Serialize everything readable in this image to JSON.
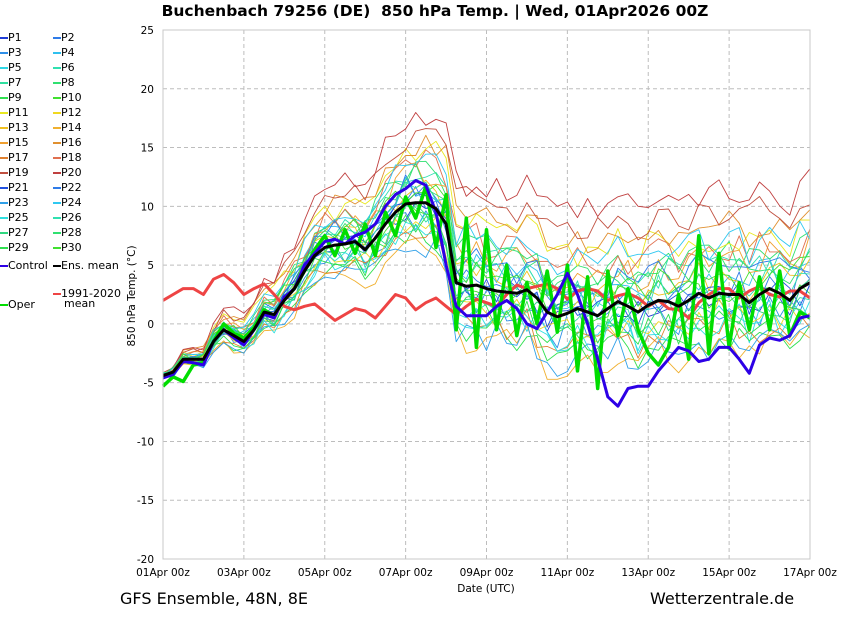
{
  "chart_data": {
    "type": "line",
    "title": "Buchenbach 79256 (DE)  850 hPa Temp. | Wed, 01Apr2026 00Z",
    "xlabel": "Date (UTC)",
    "ylabel": "850 hPa Temp. (°C)",
    "ylim": [
      -20,
      25
    ],
    "yticks": [
      -20,
      -15,
      -10,
      -5,
      0,
      5,
      10,
      15,
      20,
      25
    ],
    "x_step_hours": 6,
    "x_points": 65,
    "xticks": [
      "01Apr 00z",
      "03Apr 00z",
      "05Apr 00z",
      "07Apr 00z",
      "09Apr 00z",
      "11Apr 00z",
      "13Apr 00z",
      "15Apr 00z",
      "17Apr 00z"
    ],
    "grid": true,
    "legend_position": "left-outside",
    "main_series": {
      "ens_mean": {
        "name": "Ens. mean",
        "color": "#000000",
        "values": [
          -4.4,
          -4.1,
          -3.0,
          -3.0,
          -3.0,
          -1.5,
          -0.5,
          -1.0,
          -1.5,
          -0.5,
          1.0,
          0.8,
          2.0,
          3.0,
          4.5,
          5.8,
          6.5,
          6.7,
          6.8,
          7.0,
          6.3,
          7.3,
          8.5,
          9.5,
          10.2,
          10.3,
          10.3,
          9.8,
          8.5,
          3.5,
          3.2,
          3.3,
          3.0,
          2.8,
          2.7,
          2.6,
          2.9,
          2.2,
          1.0,
          0.6,
          0.9,
          1.3,
          1.0,
          0.7,
          1.3,
          1.9,
          1.5,
          1.0,
          1.6,
          2.0,
          1.9,
          1.5,
          2.0,
          2.6,
          2.2,
          2.6,
          2.5,
          2.5,
          1.8,
          2.5,
          3.0,
          2.6,
          2.0,
          3.0,
          3.5
        ]
      },
      "control": {
        "name": "Control",
        "color": "#2d00e6",
        "values": [
          -4.6,
          -4.3,
          -3.2,
          -3.3,
          -3.5,
          -1.5,
          -0.5,
          -1.2,
          -1.8,
          -0.5,
          0.8,
          0.5,
          2.3,
          3.0,
          5.0,
          6.0,
          7.0,
          7.2,
          6.8,
          7.5,
          7.8,
          8.5,
          10.0,
          11.0,
          11.5,
          12.2,
          11.8,
          9.5,
          5.0,
          1.5,
          0.7,
          0.7,
          0.7,
          1.5,
          2.0,
          1.3,
          0.0,
          -0.4,
          1.0,
          2.5,
          4.3,
          2.5,
          0.0,
          -3.0,
          -6.2,
          -7.0,
          -5.5,
          -5.3,
          -5.3,
          -4.0,
          -3.0,
          -2.0,
          -2.3,
          -3.2,
          -3.0,
          -2.0,
          -2.0,
          -3.0,
          -4.2,
          -1.8,
          -1.2,
          -1.4,
          -1.0,
          0.5,
          0.7
        ]
      },
      "oper": {
        "name": "Oper",
        "color": "#00dd00",
        "values": [
          -5.3,
          -4.5,
          -4.9,
          -3.5,
          -3.3,
          -1.5,
          0.0,
          -0.8,
          -1.2,
          -0.3,
          1.2,
          0.7,
          2.2,
          3.0,
          4.5,
          6.3,
          7.5,
          5.8,
          8.0,
          6.0,
          8.5,
          5.8,
          9.5,
          7.5,
          10.8,
          9.0,
          11.7,
          6.5,
          11.0,
          -0.5,
          9.0,
          -2.0,
          8.0,
          -0.5,
          5.0,
          -1.0,
          3.5,
          0.0,
          4.5,
          -0.7,
          5.0,
          -4.0,
          4.0,
          -5.5,
          4.5,
          -1.0,
          3.0,
          -0.5,
          -2.5,
          -3.5,
          -2.0,
          2.5,
          -3.0,
          7.5,
          -2.5,
          6.0,
          -2.0,
          3.5,
          -0.5,
          4.0,
          -0.5,
          4.5,
          -1.0,
          1.0,
          0.5
        ]
      },
      "climatology": {
        "name": "1991-2020 mean",
        "color": "#ee4444",
        "values": [
          2.0,
          2.5,
          3.0,
          3.0,
          2.5,
          3.8,
          4.2,
          3.5,
          2.5,
          3.0,
          3.4,
          2.5,
          1.5,
          1.2,
          1.5,
          1.7,
          1.0,
          0.3,
          0.8,
          1.3,
          1.1,
          0.5,
          1.5,
          2.5,
          2.2,
          1.2,
          1.8,
          2.2,
          1.5,
          0.8,
          1.5,
          2.1,
          1.8,
          1.5,
          2.5,
          3.3,
          3.0,
          3.2,
          3.4,
          3.0,
          2.1,
          2.8,
          3.0,
          2.8,
          2.0,
          2.4,
          2.6,
          2.2,
          1.5,
          2.0,
          1.3,
          1.2,
          0.5,
          1.8,
          2.5,
          3.0,
          3.0,
          2.2,
          2.8,
          3.2,
          2.5,
          2.3,
          2.8,
          2.8,
          2.2
        ]
      }
    },
    "members": [
      {
        "name": "P1",
        "color": "#1f3cd6"
      },
      {
        "name": "P2",
        "color": "#2f7be8"
      },
      {
        "name": "P3",
        "color": "#2f8fe8"
      },
      {
        "name": "P4",
        "color": "#30c0ee"
      },
      {
        "name": "P5",
        "color": "#30d8e6"
      },
      {
        "name": "P6",
        "color": "#30e0b0"
      },
      {
        "name": "P7",
        "color": "#30e0a0"
      },
      {
        "name": "P8",
        "color": "#30e070"
      },
      {
        "name": "P9",
        "color": "#30e050"
      },
      {
        "name": "P10",
        "color": "#40e030"
      },
      {
        "name": "P11",
        "color": "#e8e820"
      },
      {
        "name": "P12",
        "color": "#f0d820"
      },
      {
        "name": "P13",
        "color": "#f0c020"
      },
      {
        "name": "P14",
        "color": "#f0b030"
      },
      {
        "name": "P15",
        "color": "#f0a030"
      },
      {
        "name": "P16",
        "color": "#e09030"
      },
      {
        "name": "P17",
        "color": "#e08030"
      },
      {
        "name": "P18",
        "color": "#e07050"
      },
      {
        "name": "P19",
        "color": "#c05040"
      },
      {
        "name": "P20",
        "color": "#c04040"
      },
      {
        "name": "P21",
        "color": "#2050e0"
      },
      {
        "name": "P22",
        "color": "#2f7be8"
      },
      {
        "name": "P23",
        "color": "#30a0e8"
      },
      {
        "name": "P24",
        "color": "#30c8f0"
      },
      {
        "name": "P25",
        "color": "#30e0e0"
      },
      {
        "name": "P26",
        "color": "#30e0b0"
      },
      {
        "name": "P27",
        "color": "#30d880"
      },
      {
        "name": "P28",
        "color": "#30e070"
      },
      {
        "name": "P29",
        "color": "#30e050"
      },
      {
        "name": "P30",
        "color": "#40e030"
      }
    ],
    "member_spread": {
      "note": "perturbed members fan out around ens. mean; approximate offsets in °C",
      "offsets": [
        -0.4,
        0.6,
        -1.2,
        1.5,
        -2.0,
        2.2,
        -0.8,
        3.0,
        -3.2,
        0.3,
        4.5,
        -1.6,
        1.1,
        -4.0,
        2.6,
        5.5,
        -2.6,
        3.6,
        6.5,
        7.8,
        -0.1,
        1.9,
        -3.6,
        4.0,
        -2.2,
        0.9,
        -1.0,
        2.3,
        -1.8,
        1.4
      ]
    }
  },
  "legend": {
    "entries": [
      "P1",
      "P2",
      "P3",
      "P4",
      "P5",
      "P6",
      "P7",
      "P8",
      "P9",
      "P10",
      "P11",
      "P12",
      "P13",
      "P14",
      "P15",
      "P16",
      "P17",
      "P18",
      "P19",
      "P20",
      "P21",
      "P22",
      "P23",
      "P24",
      "P25",
      "P26",
      "P27",
      "P28",
      "P29",
      "P30",
      "Control",
      "Ens. mean",
      "Oper",
      "1991-2020 mean"
    ],
    "climatology_line1": "1991-2020",
    "climatology_line2": "mean"
  },
  "footer": {
    "left": "GFS Ensemble, 48N, 8E",
    "right": "Wetterzentrale.de"
  }
}
